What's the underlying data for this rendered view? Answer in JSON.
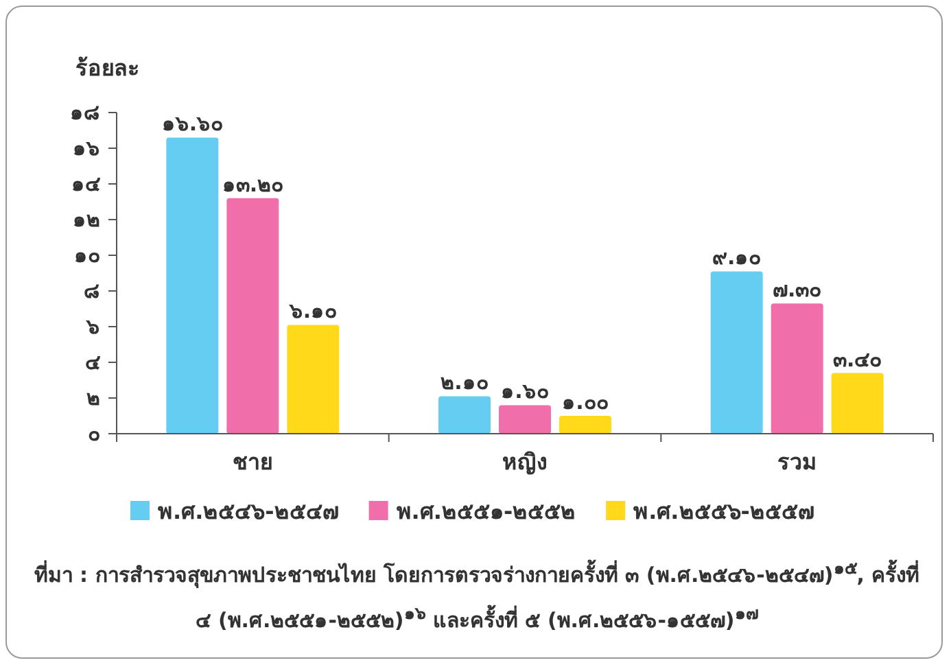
{
  "chart_data": {
    "type": "bar",
    "ylabel": "ร้อยละ",
    "categories": [
      "ชาย",
      "หญิง",
      "รวม"
    ],
    "series": [
      {
        "name": "พ.ศ.๒๕๔๖-๒๕๔๗",
        "color": "#66cdf2",
        "values": [
          16.6,
          2.1,
          9.1
        ],
        "value_labels": [
          "๑๖.๖๐",
          "๒.๑๐",
          "๙.๑๐"
        ]
      },
      {
        "name": "พ.ศ.๒๕๕๑-๒๕๕๒",
        "color": "#f06eaa",
        "values": [
          13.2,
          1.6,
          7.3
        ],
        "value_labels": [
          "๑๓.๒๐",
          "๑.๖๐",
          "๗.๓๐"
        ]
      },
      {
        "name": "พ.ศ.๒๕๕๖-๒๕๕๗",
        "color": "#ffd91a",
        "values": [
          6.1,
          1.0,
          3.4
        ],
        "value_labels": [
          "๖.๑๐",
          "๑.๐๐",
          "๓.๔๐"
        ]
      }
    ],
    "ylim": [
      0,
      18
    ],
    "yticks": [
      {
        "value": 0,
        "label": "๐"
      },
      {
        "value": 2,
        "label": "๒"
      },
      {
        "value": 4,
        "label": "๔"
      },
      {
        "value": 6,
        "label": "๖"
      },
      {
        "value": 8,
        "label": "๘"
      },
      {
        "value": 10,
        "label": "๑๐"
      },
      {
        "value": 12,
        "label": "๑๒"
      },
      {
        "value": 14,
        "label": "๑๔"
      },
      {
        "value": 16,
        "label": "๑๖"
      },
      {
        "value": 18,
        "label": "๑๘"
      }
    ],
    "legend": "bottom",
    "grid": false,
    "annotations": [
      "ที่มา : การสำรวจสุขภาพประชาชนไทย โดยการตรวจร่างกายครั้งที่ ๓ (พ.ศ.๒๕๔๖-๒๕๔๗)$^{๑๕}$, ครั้งที่ ๔ (พ.ศ.๒๕๕๑-๒๕๕๒)$^{๑๖}$ และครั้งที่ ๕ (พ.ศ.๒๕๕๖-๑๕๕๗)$^{๑๗}$"
    ]
  }
}
